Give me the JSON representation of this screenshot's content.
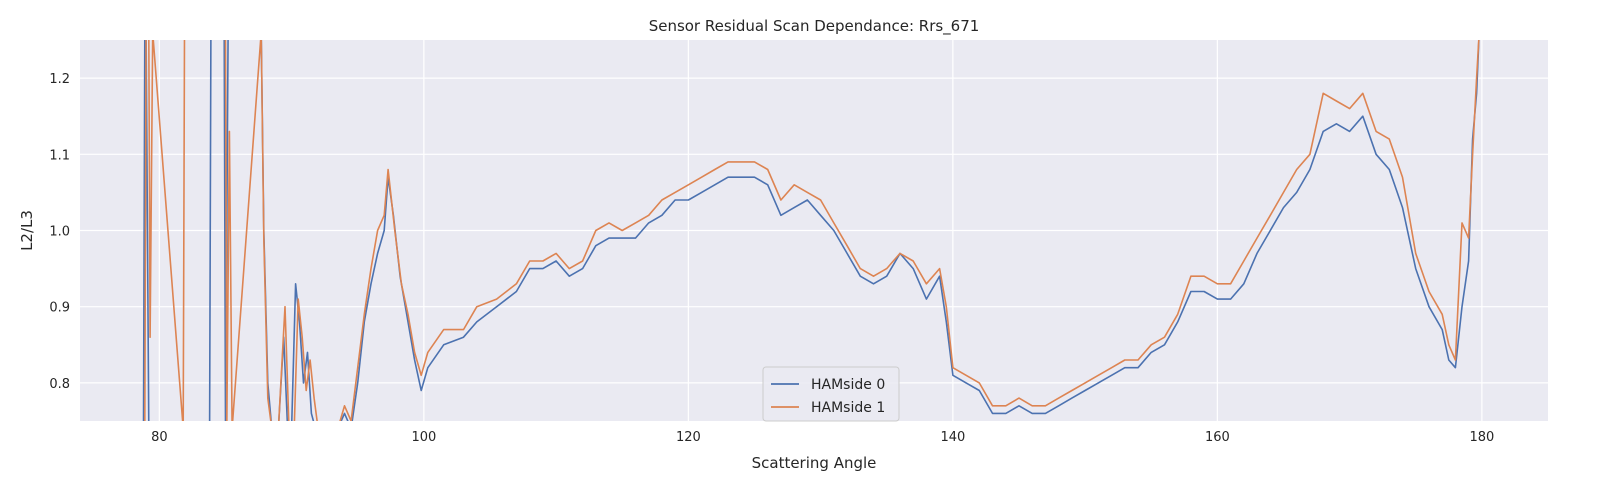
{
  "chart_data": {
    "type": "line",
    "title": "Sensor Residual Scan Dependance: Rrs_671",
    "xlabel": "Scattering Angle",
    "ylabel": "L2/L3",
    "xlim": [
      74,
      185
    ],
    "ylim": [
      0.75,
      1.25
    ],
    "x_ticks": [
      80,
      100,
      120,
      140,
      160,
      180
    ],
    "y_ticks": [
      0.8,
      0.9,
      1.0,
      1.1,
      1.2
    ],
    "x_tick_labels": [
      "80",
      "100",
      "120",
      "140",
      "160",
      "180"
    ],
    "y_tick_labels": [
      "0.8",
      "0.9",
      "1.0",
      "1.1",
      "1.2"
    ],
    "grid": true,
    "background": "#eaeaf2",
    "legend_position": "lower-center",
    "series": [
      {
        "name": "HAMside 0",
        "color": "#4c72b0",
        "points": [
          [
            78.8,
            0.74
          ],
          [
            78.9,
            1.26
          ],
          [
            79.0,
            1.26
          ],
          [
            79.2,
            0.74
          ],
          [
            83.8,
            0.74
          ],
          [
            83.9,
            1.26
          ],
          [
            84.9,
            1.26
          ],
          [
            85.0,
            0.74
          ],
          [
            85.2,
            1.26
          ],
          [
            87.7,
            1.26
          ],
          [
            87.9,
            1.0
          ],
          [
            88.2,
            0.8
          ],
          [
            88.5,
            0.74
          ],
          [
            89.0,
            0.74
          ],
          [
            89.4,
            0.86
          ],
          [
            89.7,
            0.74
          ],
          [
            90.0,
            0.74
          ],
          [
            90.3,
            0.93
          ],
          [
            90.6,
            0.88
          ],
          [
            90.9,
            0.8
          ],
          [
            91.2,
            0.84
          ],
          [
            91.5,
            0.76
          ],
          [
            91.8,
            0.74
          ],
          [
            92.5,
            0.74
          ],
          [
            93.5,
            0.74
          ],
          [
            94.0,
            0.76
          ],
          [
            94.5,
            0.74
          ],
          [
            95.0,
            0.8
          ],
          [
            95.5,
            0.88
          ],
          [
            96.0,
            0.93
          ],
          [
            96.5,
            0.97
          ],
          [
            97.0,
            1.0
          ],
          [
            97.3,
            1.07
          ],
          [
            97.7,
            1.02
          ],
          [
            98.2,
            0.94
          ],
          [
            98.8,
            0.88
          ],
          [
            99.3,
            0.83
          ],
          [
            99.8,
            0.79
          ],
          [
            100.3,
            0.82
          ],
          [
            101.5,
            0.85
          ],
          [
            103.0,
            0.86
          ],
          [
            104.0,
            0.88
          ],
          [
            105.5,
            0.9
          ],
          [
            107.0,
            0.92
          ],
          [
            108.0,
            0.95
          ],
          [
            109.0,
            0.95
          ],
          [
            110.0,
            0.96
          ],
          [
            111.0,
            0.94
          ],
          [
            112.0,
            0.95
          ],
          [
            113.0,
            0.98
          ],
          [
            114.0,
            0.99
          ],
          [
            115.0,
            0.99
          ],
          [
            116.0,
            0.99
          ],
          [
            117.0,
            1.01
          ],
          [
            118.0,
            1.02
          ],
          [
            119.0,
            1.04
          ],
          [
            120.0,
            1.04
          ],
          [
            121.0,
            1.05
          ],
          [
            122.0,
            1.06
          ],
          [
            123.0,
            1.07
          ],
          [
            124.0,
            1.07
          ],
          [
            125.0,
            1.07
          ],
          [
            126.0,
            1.06
          ],
          [
            127.0,
            1.02
          ],
          [
            128.0,
            1.03
          ],
          [
            129.0,
            1.04
          ],
          [
            130.0,
            1.02
          ],
          [
            131.0,
            1.0
          ],
          [
            132.0,
            0.97
          ],
          [
            133.0,
            0.94
          ],
          [
            134.0,
            0.93
          ],
          [
            135.0,
            0.94
          ],
          [
            136.0,
            0.97
          ],
          [
            137.0,
            0.95
          ],
          [
            138.0,
            0.91
          ],
          [
            139.0,
            0.94
          ],
          [
            139.5,
            0.88
          ],
          [
            140.0,
            0.81
          ],
          [
            141.0,
            0.8
          ],
          [
            142.0,
            0.79
          ],
          [
            143.0,
            0.76
          ],
          [
            144.0,
            0.76
          ],
          [
            145.0,
            0.77
          ],
          [
            146.0,
            0.76
          ],
          [
            147.0,
            0.76
          ],
          [
            148.0,
            0.77
          ],
          [
            149.0,
            0.78
          ],
          [
            150.0,
            0.79
          ],
          [
            151.0,
            0.8
          ],
          [
            152.0,
            0.81
          ],
          [
            153.0,
            0.82
          ],
          [
            154.0,
            0.82
          ],
          [
            155.0,
            0.84
          ],
          [
            156.0,
            0.85
          ],
          [
            157.0,
            0.88
          ],
          [
            158.0,
            0.92
          ],
          [
            159.0,
            0.92
          ],
          [
            160.0,
            0.91
          ],
          [
            161.0,
            0.91
          ],
          [
            162.0,
            0.93
          ],
          [
            163.0,
            0.97
          ],
          [
            164.0,
            1.0
          ],
          [
            165.0,
            1.03
          ],
          [
            166.0,
            1.05
          ],
          [
            167.0,
            1.08
          ],
          [
            168.0,
            1.13
          ],
          [
            169.0,
            1.14
          ],
          [
            170.0,
            1.13
          ],
          [
            171.0,
            1.15
          ],
          [
            172.0,
            1.1
          ],
          [
            173.0,
            1.08
          ],
          [
            174.0,
            1.03
          ],
          [
            175.0,
            0.95
          ],
          [
            176.0,
            0.9
          ],
          [
            177.0,
            0.87
          ],
          [
            177.5,
            0.83
          ],
          [
            178.0,
            0.82
          ],
          [
            178.5,
            0.9
          ],
          [
            179.0,
            0.96
          ],
          [
            179.3,
            1.12
          ],
          [
            179.6,
            1.18
          ],
          [
            179.8,
            1.26
          ]
        ]
      },
      {
        "name": "HAMside 1",
        "color": "#dd8452",
        "points": [
          [
            78.9,
            0.74
          ],
          [
            79.0,
            1.26
          ],
          [
            79.2,
            1.26
          ],
          [
            79.3,
            0.86
          ],
          [
            79.5,
            1.26
          ],
          [
            81.8,
            0.74
          ],
          [
            81.9,
            1.26
          ],
          [
            85.0,
            1.26
          ],
          [
            85.1,
            0.74
          ],
          [
            85.3,
            1.13
          ],
          [
            85.5,
            0.74
          ],
          [
            87.7,
            1.26
          ],
          [
            87.9,
            0.99
          ],
          [
            88.2,
            0.78
          ],
          [
            88.5,
            0.74
          ],
          [
            89.0,
            0.74
          ],
          [
            89.5,
            0.9
          ],
          [
            89.8,
            0.74
          ],
          [
            90.2,
            0.74
          ],
          [
            90.5,
            0.91
          ],
          [
            90.8,
            0.86
          ],
          [
            91.1,
            0.79
          ],
          [
            91.4,
            0.83
          ],
          [
            91.7,
            0.78
          ],
          [
            92.0,
            0.74
          ],
          [
            93.0,
            0.74
          ],
          [
            93.5,
            0.74
          ],
          [
            94.0,
            0.77
          ],
          [
            94.5,
            0.75
          ],
          [
            95.0,
            0.82
          ],
          [
            95.5,
            0.89
          ],
          [
            96.0,
            0.95
          ],
          [
            96.5,
            1.0
          ],
          [
            97.0,
            1.02
          ],
          [
            97.3,
            1.08
          ],
          [
            97.8,
            1.0
          ],
          [
            98.3,
            0.93
          ],
          [
            98.8,
            0.89
          ],
          [
            99.3,
            0.84
          ],
          [
            99.8,
            0.81
          ],
          [
            100.3,
            0.84
          ],
          [
            101.5,
            0.87
          ],
          [
            103.0,
            0.87
          ],
          [
            104.0,
            0.9
          ],
          [
            105.5,
            0.91
          ],
          [
            107.0,
            0.93
          ],
          [
            108.0,
            0.96
          ],
          [
            109.0,
            0.96
          ],
          [
            110.0,
            0.97
          ],
          [
            111.0,
            0.95
          ],
          [
            112.0,
            0.96
          ],
          [
            113.0,
            1.0
          ],
          [
            114.0,
            1.01
          ],
          [
            115.0,
            1.0
          ],
          [
            116.0,
            1.01
          ],
          [
            117.0,
            1.02
          ],
          [
            118.0,
            1.04
          ],
          [
            119.0,
            1.05
          ],
          [
            120.0,
            1.06
          ],
          [
            121.0,
            1.07
          ],
          [
            122.0,
            1.08
          ],
          [
            123.0,
            1.09
          ],
          [
            124.0,
            1.09
          ],
          [
            125.0,
            1.09
          ],
          [
            126.0,
            1.08
          ],
          [
            127.0,
            1.04
          ],
          [
            128.0,
            1.06
          ],
          [
            129.0,
            1.05
          ],
          [
            130.0,
            1.04
          ],
          [
            131.0,
            1.01
          ],
          [
            132.0,
            0.98
          ],
          [
            133.0,
            0.95
          ],
          [
            134.0,
            0.94
          ],
          [
            135.0,
            0.95
          ],
          [
            136.0,
            0.97
          ],
          [
            137.0,
            0.96
          ],
          [
            138.0,
            0.93
          ],
          [
            139.0,
            0.95
          ],
          [
            139.5,
            0.9
          ],
          [
            140.0,
            0.82
          ],
          [
            141.0,
            0.81
          ],
          [
            142.0,
            0.8
          ],
          [
            143.0,
            0.77
          ],
          [
            144.0,
            0.77
          ],
          [
            145.0,
            0.78
          ],
          [
            146.0,
            0.77
          ],
          [
            147.0,
            0.77
          ],
          [
            148.0,
            0.78
          ],
          [
            149.0,
            0.79
          ],
          [
            150.0,
            0.8
          ],
          [
            151.0,
            0.81
          ],
          [
            152.0,
            0.82
          ],
          [
            153.0,
            0.83
          ],
          [
            154.0,
            0.83
          ],
          [
            155.0,
            0.85
          ],
          [
            156.0,
            0.86
          ],
          [
            157.0,
            0.89
          ],
          [
            158.0,
            0.94
          ],
          [
            159.0,
            0.94
          ],
          [
            160.0,
            0.93
          ],
          [
            161.0,
            0.93
          ],
          [
            162.0,
            0.96
          ],
          [
            163.0,
            0.99
          ],
          [
            164.0,
            1.02
          ],
          [
            165.0,
            1.05
          ],
          [
            166.0,
            1.08
          ],
          [
            167.0,
            1.1
          ],
          [
            168.0,
            1.18
          ],
          [
            169.0,
            1.17
          ],
          [
            170.0,
            1.16
          ],
          [
            171.0,
            1.18
          ],
          [
            172.0,
            1.13
          ],
          [
            173.0,
            1.12
          ],
          [
            174.0,
            1.07
          ],
          [
            175.0,
            0.97
          ],
          [
            176.0,
            0.92
          ],
          [
            177.0,
            0.89
          ],
          [
            177.5,
            0.85
          ],
          [
            178.0,
            0.83
          ],
          [
            178.5,
            1.01
          ],
          [
            179.0,
            0.99
          ],
          [
            179.3,
            1.1
          ],
          [
            179.6,
            1.2
          ],
          [
            179.8,
            1.26
          ]
        ]
      }
    ]
  }
}
